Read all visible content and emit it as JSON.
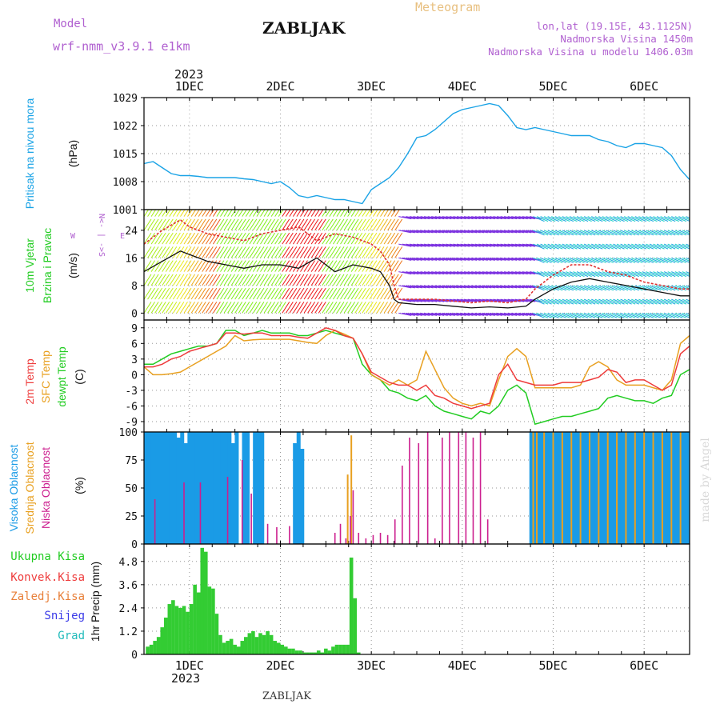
{
  "header": {
    "model_label": "Model",
    "model_name": "wrf-nmm_v3.9.1 e1km",
    "station": "ZABLJAK",
    "meteogram": "Meteogram",
    "lonlat": "lon,lat (19.15E, 43.1125N)",
    "elevation": "Nadmorska Visina 1450m",
    "model_elevation": "Nadmorska Visina u modelu 1406.03m",
    "year": "2023",
    "bottom_station": "ZABLJAK",
    "credit": "made by Angel"
  },
  "colors": {
    "pressure": "#1aa3e6",
    "wind_speed": "#111111",
    "wind_gust": "#e03030",
    "t2m": "#ee3b3b",
    "tsfc": "#e8a020",
    "dewpt": "#22cc22",
    "cloud_high": "#1a9be6",
    "cloud_mid": "#e8a020",
    "cloud_low": "#cc1f8f",
    "precip": "#33cc33",
    "grid": "#9a9a9a"
  },
  "chart_data": [
    {
      "type": "line",
      "panel": "pressure",
      "ylabel_main": "Pritisak na nivou mora",
      "ylabel_unit": "(hPa)",
      "ylim": [
        1001,
        1029
      ],
      "yticks": [
        "1029",
        "1022",
        "1015",
        "1008",
        "1001"
      ],
      "xlim": [
        0.5,
        6.5
      ],
      "xticks_top": [
        "1DEC",
        "2DEC",
        "3DEC",
        "4DEC",
        "5DEC",
        "6DEC"
      ],
      "grid": true,
      "series": [
        {
          "x": [
            0.5,
            0.6,
            0.7,
            0.8,
            0.9,
            1.0,
            1.1,
            1.2,
            1.3,
            1.4,
            1.5,
            1.6,
            1.7,
            1.8,
            1.9,
            2.0,
            2.1,
            2.2,
            2.3,
            2.4,
            2.5,
            2.6,
            2.7,
            2.8,
            2.9,
            3.0,
            3.1,
            3.2,
            3.3,
            3.4,
            3.5,
            3.6,
            3.7,
            3.8,
            3.9,
            4.0,
            4.1,
            4.2,
            4.3,
            4.4,
            4.5,
            4.6,
            4.7,
            4.8,
            4.9,
            5.0,
            5.1,
            5.2,
            5.3,
            5.4,
            5.5,
            5.6,
            5.7,
            5.8,
            5.9,
            6.0,
            6.1,
            6.2,
            6.3,
            6.4,
            6.5
          ],
          "values": [
            1012.5,
            1013,
            1011.5,
            1010,
            1009.5,
            1009.5,
            1009.3,
            1009,
            1009,
            1009,
            1009,
            1008.7,
            1008.5,
            1008,
            1007.5,
            1008,
            1006.5,
            1004.5,
            1004,
            1004.5,
            1004,
            1003.5,
            1003.5,
            1003,
            1002.5,
            1006,
            1007.5,
            1009,
            1011.5,
            1015,
            1019,
            1019.5,
            1021,
            1023,
            1025,
            1026,
            1026.5,
            1027,
            1027.5,
            1027,
            1024.5,
            1021.5,
            1021,
            1021.5,
            1021,
            1020.5,
            1020,
            1019.5,
            1019.5,
            1019.5,
            1018.5,
            1018,
            1017,
            1016.5,
            1017.5,
            1017.5,
            1017,
            1016.5,
            1014.5,
            1011,
            1008.5
          ]
        }
      ]
    },
    {
      "type": "line",
      "panel": "wind",
      "ylabel_main": "10m Vjetar",
      "ylabel_sub": "Brzina i Pravac",
      "ylabel_unit": "(m/s)",
      "compass": [
        "N",
        "<- | ->",
        "S",
        "W",
        "E"
      ],
      "ylim": [
        -2,
        30
      ],
      "yticks": [
        "24",
        "16",
        "8",
        "0"
      ],
      "xlim": [
        0.5,
        6.5
      ],
      "grid": true,
      "series": [
        {
          "name": "speed",
          "x": [
            0.5,
            0.7,
            0.9,
            1.0,
            1.2,
            1.4,
            1.6,
            1.8,
            2.0,
            2.2,
            2.4,
            2.6,
            2.8,
            3.0,
            3.1,
            3.2,
            3.25,
            3.3,
            3.5,
            3.7,
            3.9,
            4.1,
            4.3,
            4.5,
            4.7,
            4.8,
            5.0,
            5.2,
            5.4,
            5.6,
            5.8,
            6.0,
            6.2,
            6.4,
            6.5
          ],
          "values": [
            12,
            15,
            18,
            17,
            15,
            14,
            13,
            14,
            14,
            13,
            16,
            12,
            14,
            13,
            12,
            8,
            4,
            3,
            2.5,
            2.5,
            2,
            1.5,
            1.8,
            1.5,
            2,
            4,
            7,
            9,
            10,
            9,
            8,
            7,
            6,
            5,
            5
          ]
        },
        {
          "name": "gust",
          "x": [
            0.5,
            0.7,
            0.9,
            1.0,
            1.2,
            1.4,
            1.6,
            1.8,
            2.0,
            2.2,
            2.4,
            2.6,
            2.8,
            3.0,
            3.1,
            3.2,
            3.25,
            3.3,
            3.5,
            3.7,
            3.9,
            4.1,
            4.3,
            4.5,
            4.7,
            4.8,
            5.0,
            5.2,
            5.4,
            5.6,
            5.8,
            6.0,
            6.2,
            6.4,
            6.5
          ],
          "values": [
            20,
            24,
            27,
            25,
            23,
            22,
            21,
            23,
            24,
            25,
            21,
            23,
            22,
            20,
            18,
            14,
            8,
            4,
            4,
            4,
            3.5,
            3,
            3.5,
            3,
            4,
            7,
            11,
            14,
            14,
            12,
            11,
            9,
            8,
            7,
            7
          ]
        }
      ]
    },
    {
      "type": "line",
      "panel": "temperature",
      "ylabel_a": "2m Temp",
      "ylabel_b": "SFC Temp",
      "ylabel_c": "dewpt Temp",
      "ylabel_unit": "(C)",
      "ylim": [
        -11,
        10.5
      ],
      "yticks": [
        "9",
        "6",
        "3",
        "0",
        "-3",
        "-6",
        "-9"
      ],
      "xlim": [
        0.5,
        6.5
      ],
      "grid": true,
      "x": [
        0.5,
        0.6,
        0.7,
        0.8,
        0.9,
        1.0,
        1.1,
        1.2,
        1.3,
        1.4,
        1.5,
        1.6,
        1.7,
        1.8,
        1.9,
        2.0,
        2.1,
        2.2,
        2.3,
        2.4,
        2.5,
        2.6,
        2.7,
        2.8,
        2.9,
        3.0,
        3.1,
        3.2,
        3.3,
        3.4,
        3.5,
        3.6,
        3.7,
        3.8,
        3.9,
        4.0,
        4.1,
        4.2,
        4.3,
        4.4,
        4.5,
        4.6,
        4.7,
        4.8,
        4.9,
        5.0,
        5.1,
        5.2,
        5.3,
        5.4,
        5.5,
        5.6,
        5.7,
        5.8,
        5.9,
        6.0,
        6.1,
        6.2,
        6.3,
        6.4,
        6.5
      ],
      "series": [
        {
          "name": "t2m",
          "values": [
            1.5,
            1.5,
            2,
            3,
            3.5,
            4.5,
            5,
            5.5,
            6,
            8,
            8,
            7.8,
            8,
            8,
            7.5,
            7.5,
            7.5,
            7.2,
            7,
            8,
            9,
            8.5,
            7.5,
            7,
            4,
            0.5,
            -0.5,
            -1.5,
            -2,
            -2,
            -3,
            -2,
            -4,
            -4.5,
            -5.5,
            -6,
            -6.5,
            -6,
            -5.5,
            0,
            2,
            -1,
            -1.5,
            -2,
            -2,
            -2,
            -1.5,
            -1.5,
            -1.5,
            -1,
            -0.5,
            1,
            0.5,
            -1.5,
            -1,
            -1,
            -2,
            -3,
            -2,
            4,
            5.5
          ]
        },
        {
          "name": "tsfc",
          "values": [
            1.5,
            0,
            0,
            0.2,
            0.5,
            1.5,
            2.5,
            3.5,
            4.5,
            5.5,
            7.5,
            6.5,
            6.7,
            6.8,
            6.8,
            6.8,
            6.8,
            6.5,
            6.2,
            6,
            7.5,
            8.5,
            7.8,
            7,
            4,
            0,
            -1,
            -2,
            -1,
            -2,
            -1,
            4.5,
            1,
            -2.5,
            -4.5,
            -5.5,
            -6,
            -5.5,
            -6,
            -1,
            3.5,
            5,
            3.5,
            -2.5,
            -2.5,
            -2.5,
            -2.5,
            -2.5,
            -2,
            1.5,
            2.5,
            1.5,
            -1,
            -2,
            -2,
            -2,
            -2.5,
            -3,
            -1,
            6,
            7.5
          ]
        },
        {
          "name": "dewpt",
          "values": [
            2,
            2,
            3,
            4,
            4.5,
            5,
            5.5,
            5.5,
            6,
            8.5,
            8.5,
            7.5,
            8,
            8.5,
            8,
            8,
            8,
            7.5,
            7.5,
            8,
            8.5,
            8,
            7.5,
            7,
            2,
            0,
            -1,
            -3,
            -3.5,
            -4.5,
            -5,
            -4,
            -6,
            -7,
            -7.5,
            -8,
            -8.5,
            -7,
            -7.5,
            -6,
            -3,
            -2,
            -3.5,
            -9.5,
            -9,
            -8.5,
            -8,
            -8,
            -7.5,
            -7,
            -6.5,
            -4.5,
            -4,
            -4.5,
            -5,
            -5,
            -5.5,
            -4.5,
            -4,
            0,
            1
          ]
        }
      ]
    },
    {
      "type": "bar",
      "panel": "cloud",
      "ylabel_a": "Visoka Oblacnost",
      "ylabel_b": "Srednja Oblacnost",
      "ylabel_c": "Niska Oblacnost",
      "ylabel_unit": "(%)",
      "ylim": [
        0,
        100
      ],
      "yticks": [
        "100",
        "75",
        "50",
        "25",
        "0"
      ],
      "xlim": [
        0.5,
        6.5
      ],
      "grid": true,
      "high_x": [
        0.52,
        0.56,
        0.6,
        0.64,
        0.68,
        0.72,
        0.76,
        0.8,
        0.84,
        0.88,
        0.92,
        0.96,
        1.0,
        1.04,
        1.08,
        1.12,
        1.16,
        1.2,
        1.24,
        1.28,
        1.32,
        1.36,
        1.4,
        1.44,
        1.48,
        1.52,
        1.6,
        1.64,
        1.72,
        1.76,
        1.8,
        2.16,
        2.2,
        2.24,
        4.76,
        4.8,
        4.84,
        4.88,
        4.92,
        4.96,
        5.0,
        5.04,
        5.08,
        5.12,
        5.16,
        5.2,
        5.24,
        5.28,
        5.32,
        5.36,
        5.4,
        5.44,
        5.48,
        5.52,
        5.56,
        5.6,
        5.64,
        5.68,
        5.72,
        5.76,
        5.8,
        5.84,
        5.88,
        5.92,
        5.96,
        6.0,
        6.04,
        6.08,
        6.12,
        6.16,
        6.2,
        6.24,
        6.28,
        6.32,
        6.36,
        6.4,
        6.44,
        6.48
      ],
      "high_values": [
        100,
        100,
        100,
        100,
        100,
        100,
        100,
        100,
        100,
        95,
        100,
        90,
        100,
        100,
        100,
        100,
        100,
        100,
        100,
        100,
        100,
        100,
        100,
        100,
        90,
        100,
        100,
        100,
        100,
        100,
        100,
        90,
        100,
        85,
        100,
        100,
        100,
        100,
        100,
        100,
        100,
        100,
        100,
        100,
        100,
        100,
        100,
        100,
        100,
        100,
        100,
        100,
        100,
        100,
        100,
        100,
        100,
        100,
        100,
        100,
        100,
        100,
        100,
        100,
        100,
        100,
        100,
        100,
        100,
        100,
        100,
        100,
        100,
        100,
        100,
        100,
        100,
        100
      ],
      "mid_x": [
        2.74,
        2.78,
        4.78,
        4.82,
        4.9,
        5.0,
        5.1,
        5.2,
        5.3,
        5.4,
        5.5,
        5.6,
        5.7,
        5.8,
        5.9,
        6.0,
        6.1,
        6.2,
        6.3,
        6.4
      ],
      "mid_values": [
        62,
        97,
        100,
        100,
        100,
        100,
        100,
        100,
        100,
        100,
        100,
        100,
        100,
        100,
        100,
        100,
        100,
        100,
        100,
        100
      ],
      "low_x": [
        0.62,
        0.94,
        1.12,
        1.42,
        1.58,
        1.68,
        1.86,
        1.96,
        2.1,
        2.6,
        2.66,
        2.72,
        2.77,
        2.8,
        2.86,
        2.94,
        3.02,
        3.1,
        3.18,
        3.26,
        3.34,
        3.42,
        3.52,
        3.62,
        3.7,
        3.78,
        3.86,
        3.96,
        4.04,
        4.12,
        4.2,
        4.28
      ],
      "low_values": [
        40,
        55,
        55,
        60,
        75,
        45,
        18,
        15,
        16,
        10,
        18,
        5,
        25,
        48,
        10,
        5,
        8,
        10,
        8,
        22,
        70,
        95,
        90,
        100,
        5,
        95,
        100,
        100,
        100,
        95,
        100,
        22
      ]
    },
    {
      "type": "bar",
      "panel": "precip",
      "legend": [
        "Ukupna Kisa",
        "Konvek.Kisa",
        "Zaledj.Kisa",
        "Snijeg",
        "Grad"
      ],
      "ylabel": "1hr Precip (mm)",
      "ylim": [
        0,
        5.7
      ],
      "yticks": [
        "4.8",
        "3.6",
        "2.4",
        "1.2",
        "0"
      ],
      "xlim": [
        0.5,
        6.5
      ],
      "xticks_bottom": [
        "1DEC",
        "2DEC",
        "3DEC",
        "4DEC",
        "5DEC",
        "6DEC"
      ],
      "grid": true,
      "x": [
        0.54,
        0.58,
        0.62,
        0.66,
        0.7,
        0.74,
        0.78,
        0.82,
        0.86,
        0.9,
        0.94,
        0.98,
        1.02,
        1.06,
        1.1,
        1.14,
        1.18,
        1.22,
        1.26,
        1.3,
        1.34,
        1.38,
        1.42,
        1.46,
        1.5,
        1.54,
        1.58,
        1.62,
        1.66,
        1.7,
        1.74,
        1.78,
        1.82,
        1.86,
        1.9,
        1.94,
        1.98,
        2.02,
        2.06,
        2.1,
        2.14,
        2.18,
        2.22,
        2.26,
        2.3,
        2.34,
        2.38,
        2.42,
        2.46,
        2.5,
        2.54,
        2.58,
        2.62,
        2.66,
        2.7,
        2.74,
        2.78,
        2.82,
        2.86
      ],
      "values": [
        0.4,
        0.5,
        0.7,
        0.9,
        1.4,
        1.9,
        2.6,
        2.8,
        2.5,
        2.4,
        2.5,
        2.2,
        2.6,
        3.6,
        3.2,
        5.5,
        5.3,
        3.5,
        3.4,
        2.1,
        1.0,
        0.6,
        0.7,
        0.8,
        0.5,
        0.4,
        0.7,
        0.9,
        1.1,
        1.2,
        0.9,
        1.1,
        1.0,
        1.2,
        1.0,
        0.7,
        0.6,
        0.5,
        0.4,
        0.3,
        0.3,
        0.2,
        0.2,
        0.1,
        0.1,
        0.1,
        0.1,
        0.2,
        0.1,
        0.3,
        0.2,
        0.4,
        0.5,
        0.5,
        0.5,
        0.5,
        5.0,
        2.9,
        0.1
      ]
    }
  ]
}
